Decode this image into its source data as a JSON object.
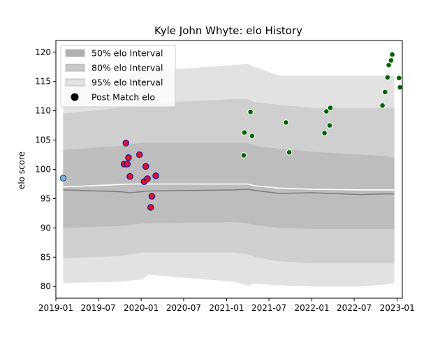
{
  "chart_data": {
    "type": "scatter",
    "title": "Kyle John Whyte: elo History",
    "xlabel": "",
    "ylabel": "elo score",
    "xlim": [
      "2019-01-01",
      "2023-01-23"
    ],
    "ylim": [
      78,
      122
    ],
    "grid": false,
    "legend_placement": "top-left",
    "x_ticks": [
      "2019-01",
      "2019-07",
      "2020-01",
      "2020-07",
      "2021-01",
      "2021-07",
      "2022-01",
      "2022-07",
      "2023-01"
    ],
    "y_ticks": [
      80,
      85,
      90,
      95,
      100,
      105,
      110,
      115,
      120
    ],
    "legend": [
      {
        "label": "50% elo Interval",
        "kind": "band",
        "color": "#b0b0b0"
      },
      {
        "label": "80% elo Interval",
        "kind": "band",
        "color": "#c8c8c8"
      },
      {
        "label": "95% elo Interval",
        "kind": "band",
        "color": "#e2e2e2"
      },
      {
        "label": "Post Match elo",
        "kind": "marker",
        "color": "#000000"
      }
    ],
    "colors": {
      "band95": "#e2e2e2",
      "band80": "#cfcfcf",
      "band50": "#bdbdbd",
      "median_line": "#808080",
      "mean_line": "#ffffff",
      "initial_point": "#7fb0e0",
      "red_points_fill": "#e0102a",
      "red_points_edge": "#1a1aa0",
      "green_points": "#006400"
    },
    "intervals": {
      "x": [
        "2019-02-01",
        "2019-10-01",
        "2019-11-15",
        "2020-01-01",
        "2020-02-01",
        "2021-02-01",
        "2021-04-01",
        "2021-05-01",
        "2021-08-15",
        "2022-01-01",
        "2022-08-01",
        "2022-11-01",
        "2022-12-20"
      ],
      "p95_high": [
        113.5,
        115.5,
        116.5,
        116.8,
        116.8,
        117.8,
        118.0,
        117.5,
        116.0,
        116.0,
        116.0,
        116.0,
        116.0
      ],
      "p80_high": [
        109.5,
        110.5,
        111.0,
        111.3,
        111.3,
        112.0,
        112.0,
        111.5,
        111.0,
        110.5,
        110.5,
        110.5,
        110.5
      ],
      "p50_high": [
        103.3,
        104.0,
        104.3,
        104.5,
        104.5,
        104.5,
        104.5,
        104.0,
        103.5,
        103.0,
        102.5,
        102.3,
        102.0
      ],
      "p50_low": [
        90.0,
        90.3,
        90.5,
        90.8,
        90.8,
        91.0,
        90.8,
        90.5,
        90.0,
        89.8,
        89.8,
        89.8,
        89.8
      ],
      "p80_low": [
        84.8,
        85.2,
        85.5,
        85.8,
        85.8,
        85.8,
        85.5,
        85.0,
        84.3,
        84.0,
        84.0,
        84.0,
        84.0
      ],
      "p95_low": [
        80.6,
        80.8,
        81.0,
        81.2,
        82.0,
        80.8,
        80.2,
        80.5,
        80.2,
        80.0,
        80.0,
        80.3,
        80.5
      ],
      "median": [
        96.5,
        96.2,
        96.0,
        96.2,
        96.3,
        96.5,
        96.6,
        96.4,
        95.9,
        96.0,
        95.7,
        95.8,
        95.8
      ],
      "mean": [
        97.0,
        97.4,
        97.5,
        97.5,
        97.5,
        97.5,
        97.5,
        97.2,
        96.8,
        96.6,
        96.5,
        96.5,
        96.5
      ]
    },
    "series": [
      {
        "kind": "initial",
        "points": [
          {
            "x": "2019-02-01",
            "y": 98.5
          }
        ]
      },
      {
        "kind": "red",
        "points": [
          {
            "x": "2019-10-20",
            "y": 100.9
          },
          {
            "x": "2019-10-28",
            "y": 104.5
          },
          {
            "x": "2019-11-03",
            "y": 100.9
          },
          {
            "x": "2019-11-08",
            "y": 102.0
          },
          {
            "x": "2019-11-14",
            "y": 98.8
          },
          {
            "x": "2019-12-25",
            "y": 102.5
          },
          {
            "x": "2020-01-14",
            "y": 97.9
          },
          {
            "x": "2020-01-21",
            "y": 100.5
          },
          {
            "x": "2020-01-28",
            "y": 98.4
          },
          {
            "x": "2020-02-11",
            "y": 93.5
          },
          {
            "x": "2020-02-16",
            "y": 95.4
          },
          {
            "x": "2020-03-04",
            "y": 98.9
          }
        ]
      },
      {
        "kind": "green",
        "points": [
          {
            "x": "2021-03-15",
            "y": 102.4
          },
          {
            "x": "2021-03-18",
            "y": 106.3
          },
          {
            "x": "2021-04-13",
            "y": 109.8
          },
          {
            "x": "2021-04-20",
            "y": 105.7
          },
          {
            "x": "2021-09-12",
            "y": 108.0
          },
          {
            "x": "2021-09-26",
            "y": 102.9
          },
          {
            "x": "2022-02-24",
            "y": 106.2
          },
          {
            "x": "2022-03-04",
            "y": 109.9
          },
          {
            "x": "2022-03-18",
            "y": 107.5
          },
          {
            "x": "2022-03-21",
            "y": 110.5
          },
          {
            "x": "2022-10-30",
            "y": 110.9
          },
          {
            "x": "2022-11-10",
            "y": 113.2
          },
          {
            "x": "2022-11-21",
            "y": 115.7
          },
          {
            "x": "2022-11-26",
            "y": 117.8
          },
          {
            "x": "2022-12-06",
            "y": 118.6
          },
          {
            "x": "2022-12-11",
            "y": 119.6
          },
          {
            "x": "2023-01-09",
            "y": 115.6
          },
          {
            "x": "2023-01-13",
            "y": 114.0
          }
        ]
      }
    ]
  }
}
